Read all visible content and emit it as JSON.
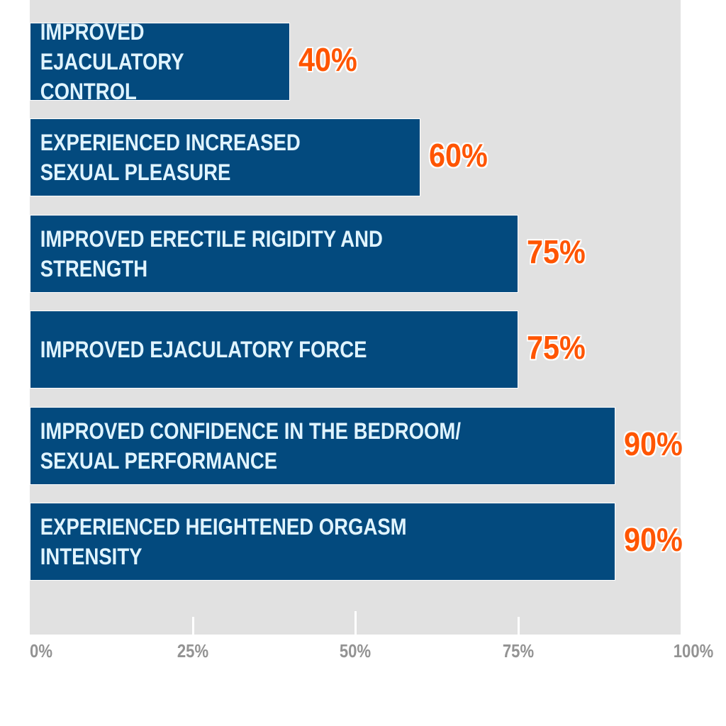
{
  "chart_data": {
    "type": "bar",
    "orientation": "horizontal",
    "categories": [
      "IMPROVED\nEJACULATORY CONTROL",
      "EXPERIENCED INCREASED\nSEXUAL PLEASURE",
      "IMPROVED ERECTILE RIGIDITY AND\nSTRENGTH",
      "IMPROVED EJACULATORY FORCE",
      "IMPROVED CONFIDENCE IN THE BEDROOM/\nSEXUAL PERFORMANCE",
      "EXPERIENCED HEIGHTENED ORGASM\nINTENSITY"
    ],
    "values": [
      40,
      60,
      75,
      75,
      90,
      90
    ],
    "value_labels": [
      "40%",
      "60%",
      "75%",
      "75%",
      "90%",
      "90%"
    ],
    "xlim": [
      0,
      100
    ],
    "xticks": [
      0,
      25,
      50,
      75,
      100
    ],
    "xtick_labels": [
      "0%",
      "25%",
      "50%",
      "75%",
      "100%"
    ],
    "title": "",
    "xlabel": "",
    "ylabel": "",
    "grid": false,
    "colors": {
      "bar": "#034a7e",
      "bar_text": "#e0f4ff",
      "value_label": "#ff5500",
      "background": "#e1e1e1",
      "axis_text": "#939393"
    }
  }
}
